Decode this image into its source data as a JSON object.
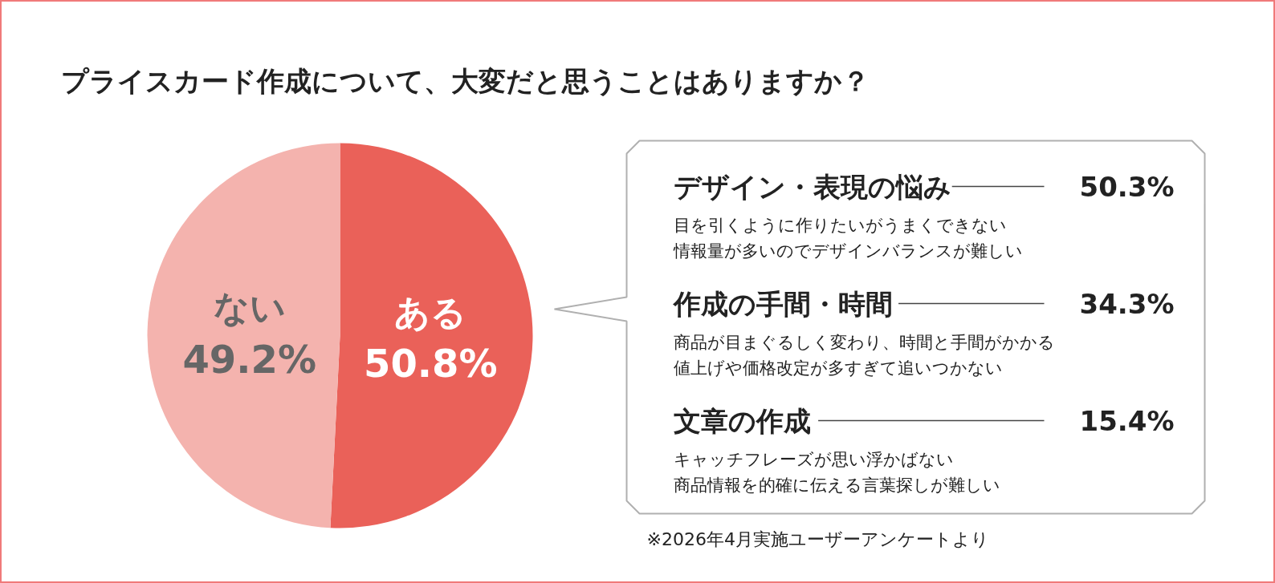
{
  "chart_data": [
    {
      "type": "pie",
      "title": "プライスカード作成について、大変だと思うことはありますか？",
      "categories": [
        "ある",
        "ない"
      ],
      "values": [
        50.8,
        49.2
      ],
      "colors": [
        "#ea6159",
        "#f4b3ae"
      ],
      "value_labels": [
        "50.8%",
        "49.2%"
      ]
    },
    {
      "type": "other",
      "categories": [
        "デザイン・表現の悩み",
        "作成の手間・時間",
        "文章の作成"
      ],
      "value_labels": [
        "50.3%",
        "34.3%",
        "15.4%"
      ],
      "annotations": [
        "目を引くように作りたいがうまくできない",
        "情報量が多いのでデザインバランスが難しい",
        "商品が目まぐるしく変わり、時間と手間がかかる",
        "値上げや価格改定が多すぎて追いつかない",
        "キャッチフレーズが思い浮かばない",
        "商品情報を的確に伝える言葉探しが難しい",
        "※2026年4月実施ユーザーアンケートより"
      ]
    }
  ]
}
